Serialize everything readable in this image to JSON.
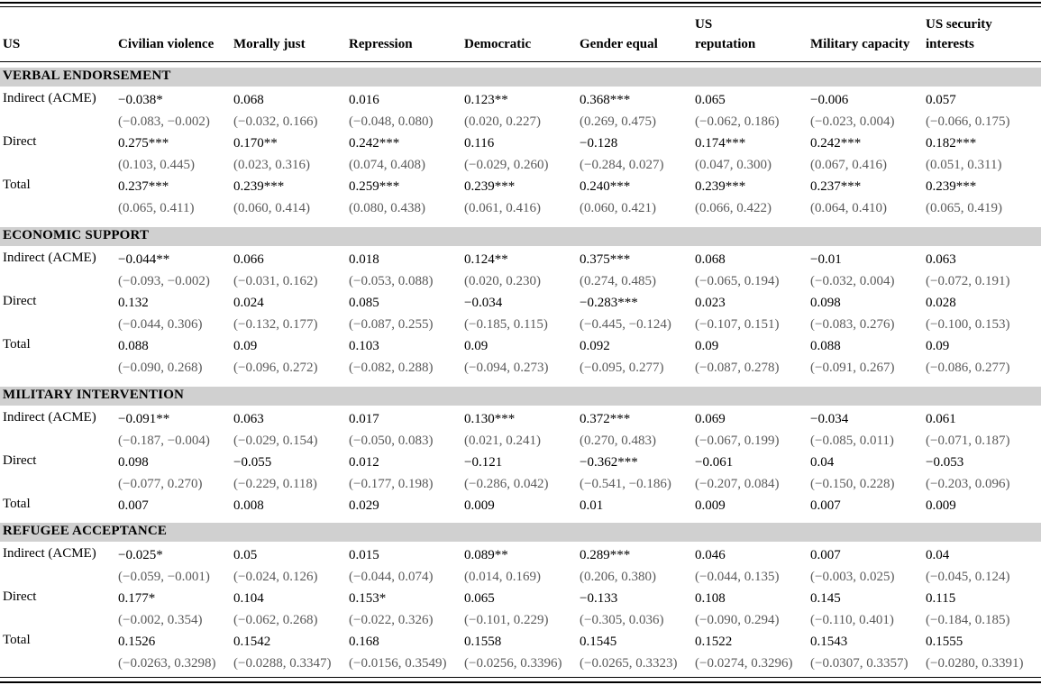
{
  "header": {
    "corner": "US",
    "columns": [
      "Civilian violence",
      "Morally just",
      "Repression",
      "Democratic",
      "Gender equal",
      "US reputation",
      "Military capacity",
      "US security interests"
    ]
  },
  "sections": [
    {
      "title": "VERBAL ENDORSEMENT",
      "rows": [
        {
          "label": "Indirect (ACME)",
          "estimates": [
            "−0.038*",
            "0.068",
            "0.016",
            "0.123**",
            "0.368***",
            "0.065",
            "−0.006",
            "0.057"
          ],
          "ci": [
            "(−0.083, −0.002)",
            "(−0.032, 0.166)",
            "(−0.048, 0.080)",
            "(0.020, 0.227)",
            "(0.269, 0.475)",
            "(−0.062, 0.186)",
            "(−0.023, 0.004)",
            "(−0.066, 0.175)"
          ]
        },
        {
          "label": "Direct",
          "estimates": [
            "0.275***",
            "0.170**",
            "0.242***",
            "0.116",
            "−0.128",
            "0.174***",
            "0.242***",
            "0.182***"
          ],
          "ci": [
            "(0.103, 0.445)",
            "(0.023, 0.316)",
            "(0.074, 0.408)",
            "(−0.029, 0.260)",
            "(−0.284, 0.027)",
            "(0.047, 0.300)",
            "(0.067, 0.416)",
            "(0.051, 0.311)"
          ]
        },
        {
          "label": "Total",
          "estimates": [
            "0.237***",
            "0.239***",
            "0.259***",
            "0.239***",
            "0.240***",
            "0.239***",
            "0.237***",
            "0.239***"
          ],
          "ci": [
            "(0.065, 0.411)",
            "(0.060, 0.414)",
            "(0.080, 0.438)",
            "(0.061, 0.416)",
            "(0.060, 0.421)",
            "(0.066, 0.422)",
            "(0.064, 0.410)",
            "(0.065, 0.419)"
          ]
        }
      ]
    },
    {
      "title": "ECONOMIC SUPPORT",
      "rows": [
        {
          "label": "Indirect (ACME)",
          "estimates": [
            "−0.044**",
            "0.066",
            "0.018",
            "0.124**",
            "0.375***",
            "0.068",
            "−0.01",
            "0.063"
          ],
          "ci": [
            "(−0.093, −0.002)",
            "(−0.031, 0.162)",
            "(−0.053, 0.088)",
            "(0.020, 0.230)",
            "(0.274, 0.485)",
            "(−0.065, 0.194)",
            "(−0.032, 0.004)",
            "(−0.072, 0.191)"
          ]
        },
        {
          "label": "Direct",
          "estimates": [
            "0.132",
            "0.024",
            "0.085",
            "−0.034",
            "−0.283***",
            "0.023",
            "0.098",
            "0.028"
          ],
          "ci": [
            "(−0.044, 0.306)",
            "(−0.132, 0.177)",
            "(−0.087, 0.255)",
            "(−0.185, 0.115)",
            "(−0.445, −0.124)",
            "(−0.107, 0.151)",
            "(−0.083, 0.276)",
            "(−0.100, 0.153)"
          ]
        },
        {
          "label": "Total",
          "estimates": [
            "0.088",
            "0.09",
            "0.103",
            "0.09",
            "0.092",
            "0.09",
            "0.088",
            "0.09"
          ],
          "ci": [
            "(−0.090, 0.268)",
            "(−0.096, 0.272)",
            "(−0.082, 0.288)",
            "(−0.094, 0.273)",
            "(−0.095, 0.277)",
            "(−0.087, 0.278)",
            "(−0.091, 0.267)",
            "(−0.086, 0.277)"
          ]
        }
      ]
    },
    {
      "title": "MILITARY INTERVENTION",
      "rows": [
        {
          "label": "Indirect (ACME)",
          "estimates": [
            "−0.091**",
            "0.063",
            "0.017",
            "0.130***",
            "0.372***",
            "0.069",
            "−0.034",
            "0.061"
          ],
          "ci": [
            "(−0.187, −0.004)",
            "(−0.029, 0.154)",
            "(−0.050, 0.083)",
            "(0.021, 0.241)",
            "(0.270, 0.483)",
            "(−0.067, 0.199)",
            "(−0.085, 0.011)",
            "(−0.071, 0.187)"
          ]
        },
        {
          "label": "Direct",
          "estimates": [
            "0.098",
            "−0.055",
            "0.012",
            "−0.121",
            "−0.362***",
            "−0.061",
            "0.04",
            "−0.053"
          ],
          "ci": [
            "(−0.077, 0.270)",
            "(−0.229, 0.118)",
            "(−0.177, 0.198)",
            "(−0.286, 0.042)",
            "(−0.541, −0.186)",
            "(−0.207, 0.084)",
            "(−0.150, 0.228)",
            "(−0.203, 0.096)"
          ]
        },
        {
          "label": "Total",
          "estimates": [
            "0.007",
            "0.008",
            "0.029",
            "0.009",
            "0.01",
            "0.009",
            "0.007",
            "0.009"
          ],
          "ci": []
        }
      ]
    },
    {
      "title": "REFUGEE ACCEPTANCE",
      "rows": [
        {
          "label": "Indirect (ACME)",
          "estimates": [
            "−0.025*",
            "0.05",
            "0.015",
            "0.089**",
            "0.289***",
            "0.046",
            "0.007",
            "0.04"
          ],
          "ci": [
            "(−0.059, −0.001)",
            "(−0.024, 0.126)",
            "(−0.044, 0.074)",
            "(0.014, 0.169)",
            "(0.206, 0.380)",
            "(−0.044, 0.135)",
            "(−0.003, 0.025)",
            "(−0.045, 0.124)"
          ]
        },
        {
          "label": "Direct",
          "estimates": [
            "0.177*",
            "0.104",
            "0.153*",
            "0.065",
            "−0.133",
            "0.108",
            "0.145",
            "0.115"
          ],
          "ci": [
            "(−0.002, 0.354)",
            "(−0.062, 0.268)",
            "(−0.022, 0.326)",
            "(−0.101, 0.229)",
            "(−0.305, 0.036)",
            "(−0.090, 0.294)",
            "(−0.110, 0.401)",
            "(−0.184, 0.185)"
          ]
        },
        {
          "label": "Total",
          "estimates": [
            "0.1526",
            "0.1542",
            "0.168",
            "0.1558",
            "0.1545",
            "0.1522",
            "0.1543",
            "0.1555"
          ],
          "ci": [
            "(−0.0263, 0.3298)",
            "(−0.0288, 0.3347)",
            "(−0.0156, 0.3549)",
            "(−0.0256, 0.3396)",
            "(−0.0265, 0.3323)",
            "(−0.0274, 0.3296)",
            "(−0.0307, 0.3357)",
            "(−0.0280, 0.3391)"
          ]
        }
      ]
    }
  ]
}
